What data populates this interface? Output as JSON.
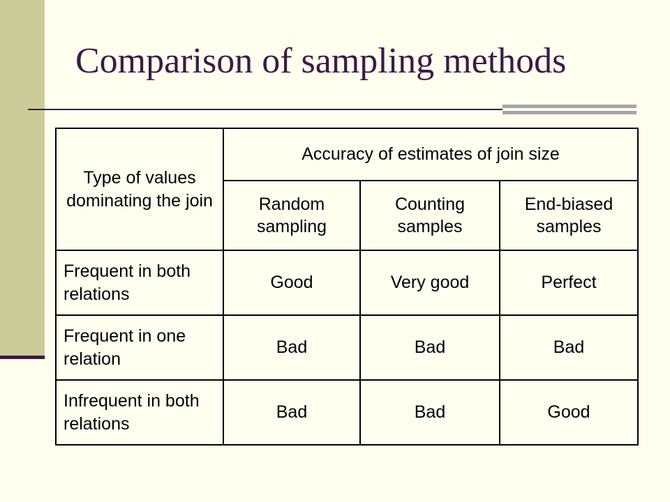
{
  "slide": {
    "title": "Comparison of sampling methods"
  },
  "table": {
    "corner_header": "Type of values dominating the join",
    "group_header": "Accuracy of estimates of join size",
    "columns": [
      "Random sampling",
      "Counting samples",
      "End-biased samples"
    ],
    "rows": [
      {
        "label": "Frequent in both relations",
        "values": [
          "Good",
          "Very good",
          "Perfect"
        ]
      },
      {
        "label": "Frequent in one relation",
        "values": [
          "Bad",
          "Bad",
          "Bad"
        ]
      },
      {
        "label": "Infrequent in both relations",
        "values": [
          "Bad",
          "Bad",
          "Good"
        ]
      }
    ]
  }
}
